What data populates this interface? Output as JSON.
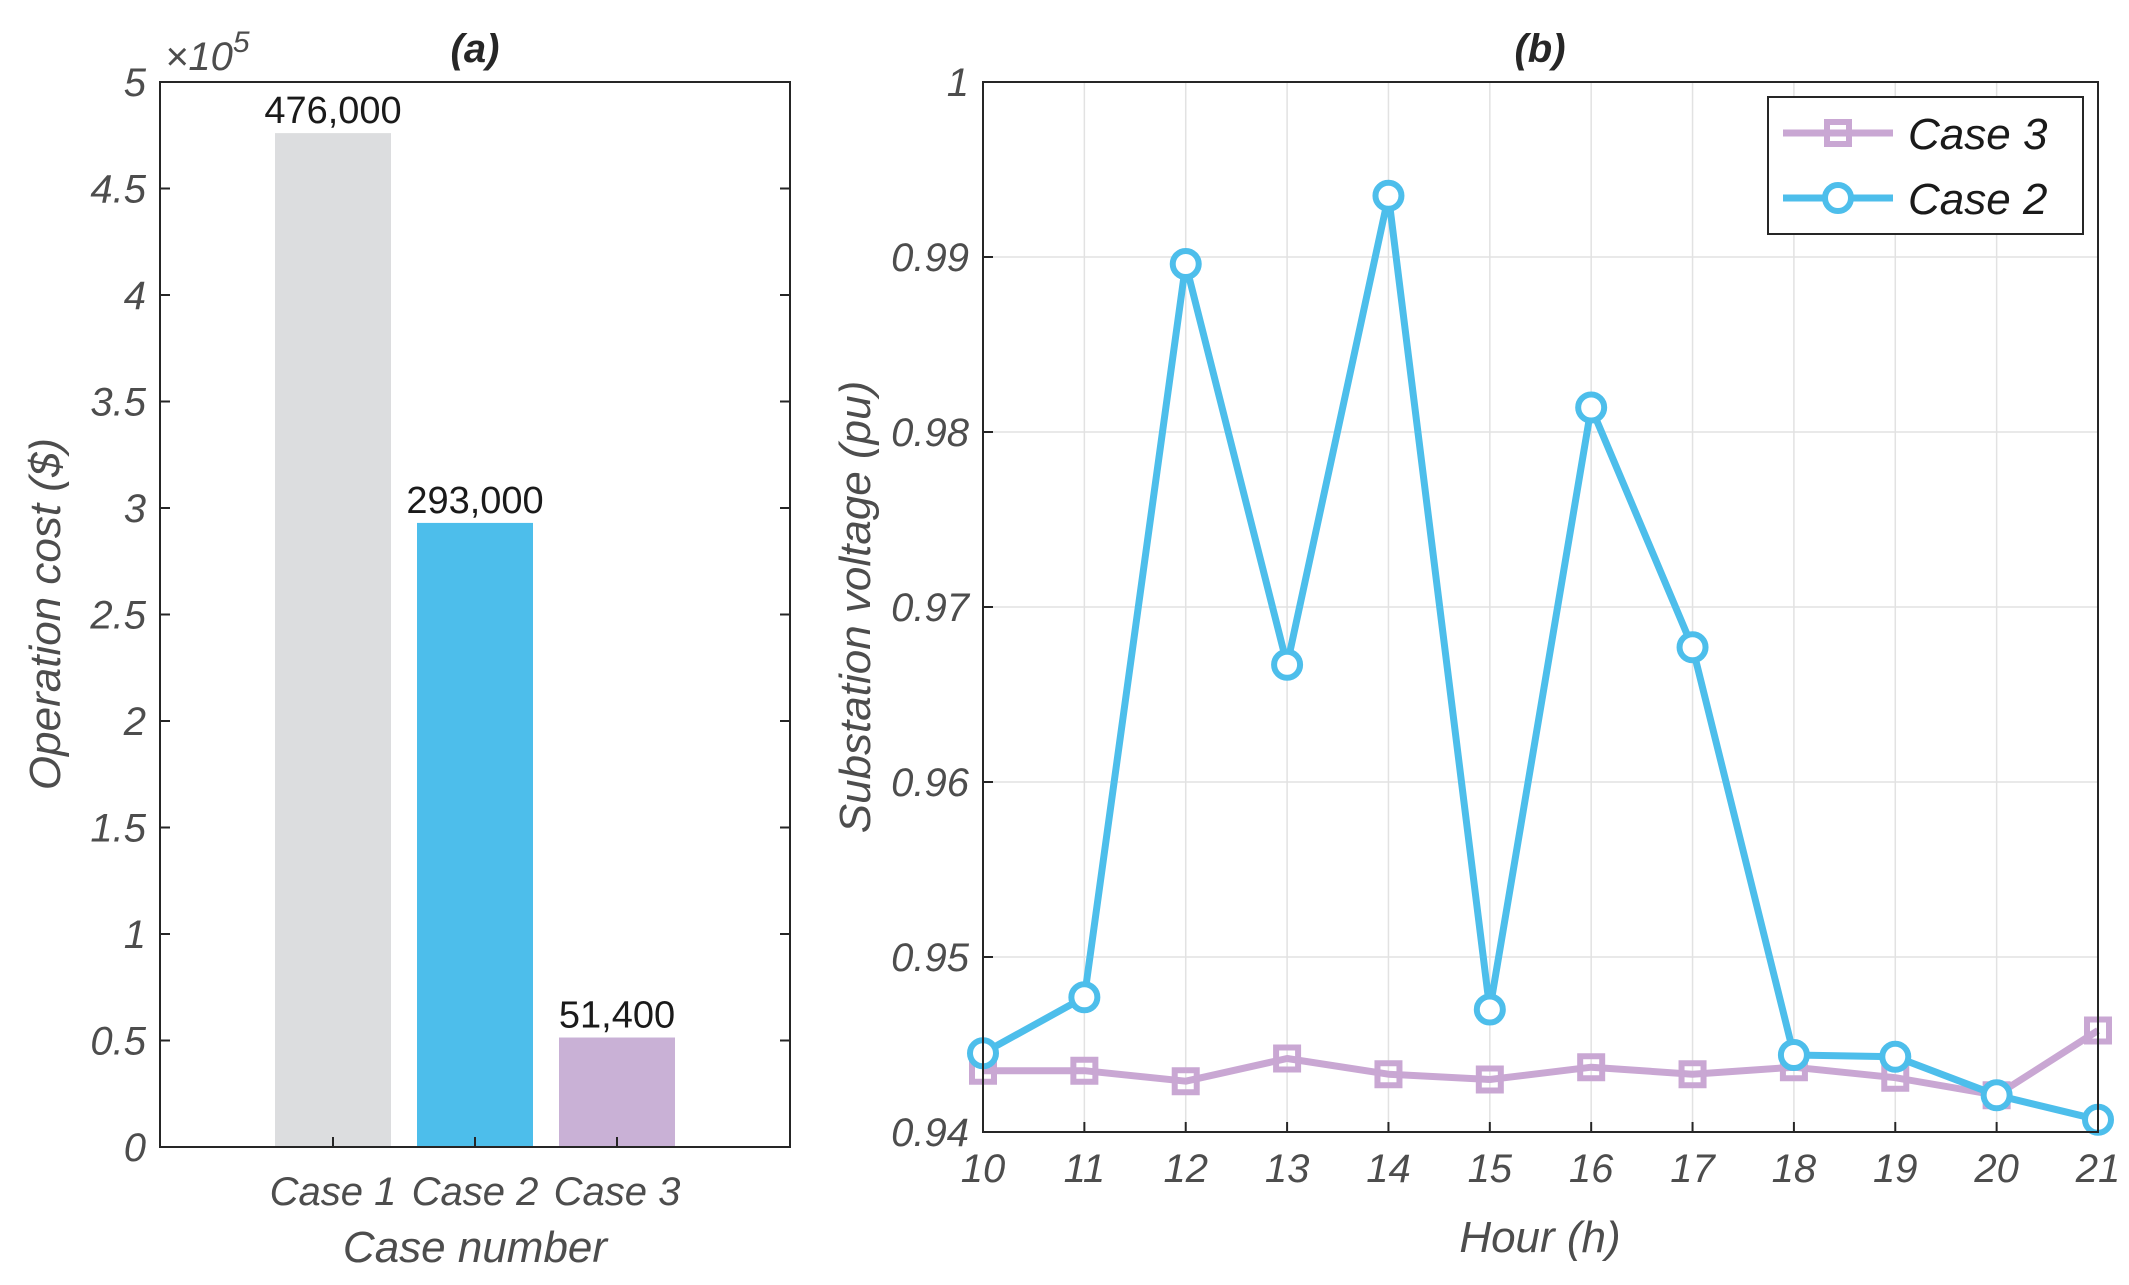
{
  "chart_data": [
    {
      "type": "bar",
      "title": "(a)",
      "xlabel": "Case number",
      "ylabel": "Operation cost ($)",
      "exponent_label": "×10",
      "exponent_power": "5",
      "categories": [
        "Case 1",
        "Case 2",
        "Case 3"
      ],
      "values": [
        476000,
        293000,
        51400
      ],
      "data_labels": [
        "476,000",
        "293,000",
        "51,400"
      ],
      "colors": [
        "#dcdddf",
        "#4dbeeb",
        "#c9b1d6"
      ],
      "ylim": [
        0,
        500000
      ],
      "yticks": [
        0,
        50000,
        100000,
        150000,
        200000,
        250000,
        300000,
        350000,
        400000,
        450000,
        500000
      ],
      "ytick_labels": [
        "0",
        "0.5",
        "1",
        "1.5",
        "2",
        "2.5",
        "3",
        "3.5",
        "4",
        "4.5",
        "5"
      ],
      "grid": false
    },
    {
      "type": "line",
      "title": "(b)",
      "xlabel": "Hour (h)",
      "ylabel": "Substation voltage (pu)",
      "x": [
        10,
        11,
        12,
        13,
        14,
        15,
        16,
        17,
        18,
        19,
        20,
        21
      ],
      "xlim": [
        10,
        21
      ],
      "ylim": [
        0.94,
        1.0
      ],
      "yticks": [
        0.94,
        0.95,
        0.96,
        0.97,
        0.98,
        0.99,
        1.0
      ],
      "ytick_labels": [
        "0.94",
        "0.95",
        "0.96",
        "0.97",
        "0.98",
        "0.99",
        "1"
      ],
      "grid": true,
      "legend_position": "top-right",
      "series": [
        {
          "name": "Case 3",
          "marker": "square",
          "color": "#c9a7d3",
          "values": [
            0.9435,
            0.9435,
            0.9429,
            0.9442,
            0.9433,
            0.943,
            0.9437,
            0.9433,
            0.9437,
            0.9431,
            0.9421,
            0.9458
          ]
        },
        {
          "name": "Case 2",
          "marker": "circle",
          "color": "#4dbeeb",
          "values": [
            0.9445,
            0.9477,
            0.9896,
            0.9667,
            0.9935,
            0.947,
            0.9814,
            0.9677,
            0.9444,
            0.9443,
            0.9421,
            0.9407
          ]
        }
      ]
    }
  ]
}
